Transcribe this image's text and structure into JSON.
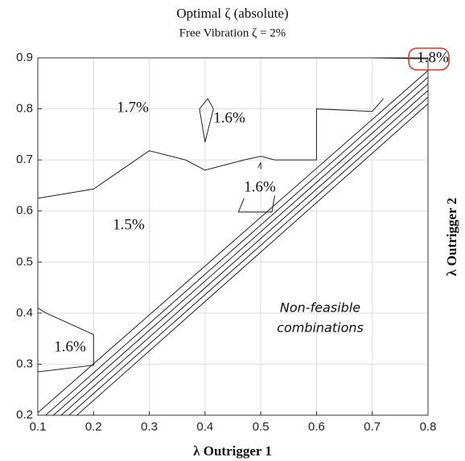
{
  "chart_data": {
    "type": "contour",
    "title": "Optimal ζ (absolute)",
    "subtitle": "Free Vibration ζ = 2%",
    "x_label": "λ Outrigger 1",
    "y_label": "λ Outrigger 2",
    "xlim": [
      0.1,
      0.8
    ],
    "ylim": [
      0.2,
      0.9
    ],
    "xticks": [
      0.1,
      0.2,
      0.3,
      0.4,
      0.5,
      0.6,
      0.7,
      0.8
    ],
    "yticks": [
      0.2,
      0.3,
      0.4,
      0.5,
      0.6,
      0.7,
      0.8,
      0.9
    ],
    "grid": true,
    "color": "#222222",
    "series": [
      {
        "x": [
          0.1,
          0.2,
          0.3,
          0.365,
          0.4,
          0.47,
          0.5,
          0.525,
          0.6,
          0.6,
          0.7,
          0.72
        ],
        "y": [
          0.625,
          0.643,
          0.718,
          0.7,
          0.68,
          0.7,
          0.707,
          0.7,
          0.7,
          0.8,
          0.795,
          0.82
        ]
      },
      {
        "x": [
          0.39,
          0.405,
          0.415,
          0.4,
          0.39
        ],
        "y": [
          0.8,
          0.82,
          0.8,
          0.735,
          0.8
        ]
      },
      {
        "x": [
          0.495,
          0.5,
          0.5
        ],
        "y": [
          0.685,
          0.695,
          0.682
        ]
      },
      {
        "x": [
          0.47,
          0.46,
          0.52,
          0.525
        ],
        "y": [
          0.625,
          0.598,
          0.598,
          0.63
        ]
      },
      {
        "x": [
          0.1,
          0.115,
          0.2,
          0.2,
          0.1
        ],
        "y": [
          0.41,
          0.4,
          0.358,
          0.298,
          0.285
        ]
      },
      {
        "x": [
          0.7,
          0.8
        ],
        "y": [
          0.9,
          0.898
        ]
      },
      {
        "x": [
          0.1,
          0.8
        ],
        "y": [
          0.205,
          0.875
        ]
      },
      {
        "x": [
          0.114,
          0.8
        ],
        "y": [
          0.2,
          0.862
        ]
      },
      {
        "x": [
          0.128,
          0.8
        ],
        "y": [
          0.2,
          0.849
        ]
      },
      {
        "x": [
          0.142,
          0.8
        ],
        "y": [
          0.2,
          0.836
        ]
      },
      {
        "x": [
          0.156,
          0.8
        ],
        "y": [
          0.2,
          0.823
        ]
      },
      {
        "x": [
          0.17,
          0.8
        ],
        "y": [
          0.2,
          0.81
        ]
      }
    ],
    "annotations": [
      "1.7%",
      "1.6%",
      "1.6%",
      "1.5%",
      "1.6%",
      "1.8%",
      "Non-feasible",
      "combinations"
    ]
  }
}
